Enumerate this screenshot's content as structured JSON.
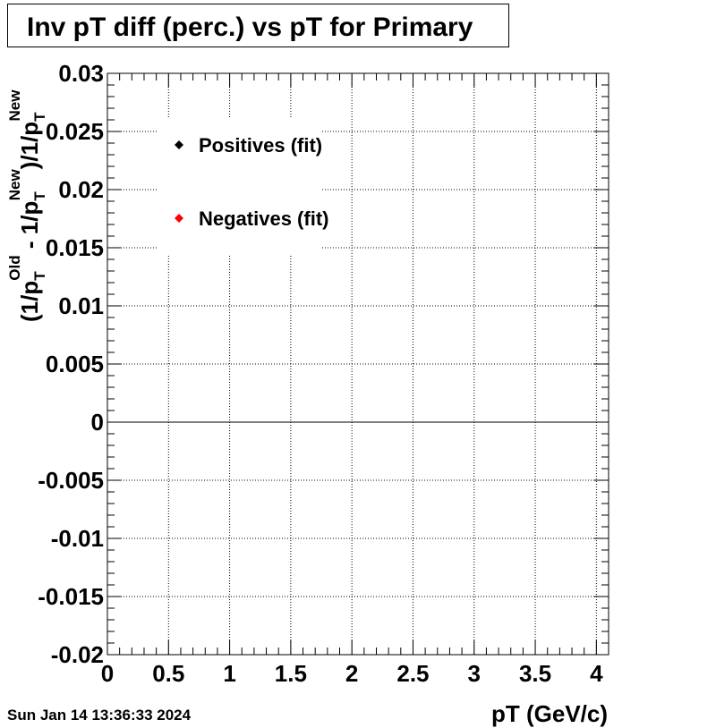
{
  "chart_data": {
    "type": "scatter",
    "title": "Inv pT diff (perc.) vs pT for Primary",
    "xlabel": "pT (GeV/c)",
    "ylabel": [
      "(1/p",
      "T",
      "Old",
      " - 1/p",
      "T",
      "New",
      ")/1/p",
      "T",
      "New"
    ],
    "timestamp": "Sun Jan 14 13:36:33 2024",
    "xlim": [
      0,
      4.1
    ],
    "xticks": [
      0,
      0.5,
      1,
      1.5,
      2,
      2.5,
      3,
      3.5,
      4
    ],
    "ylim": [
      -0.02,
      0.03
    ],
    "yticks": [
      -0.02,
      -0.015,
      -0.01,
      -0.005,
      0,
      0.005,
      0.01,
      0.015,
      0.02,
      0.025,
      0.03
    ],
    "grid": true,
    "series": [
      {
        "name": "Positives (fit)",
        "color": "#000000",
        "x": [],
        "values": []
      },
      {
        "name": "Negatives (fit)",
        "color": "#ff0000",
        "x": [],
        "values": []
      }
    ]
  }
}
